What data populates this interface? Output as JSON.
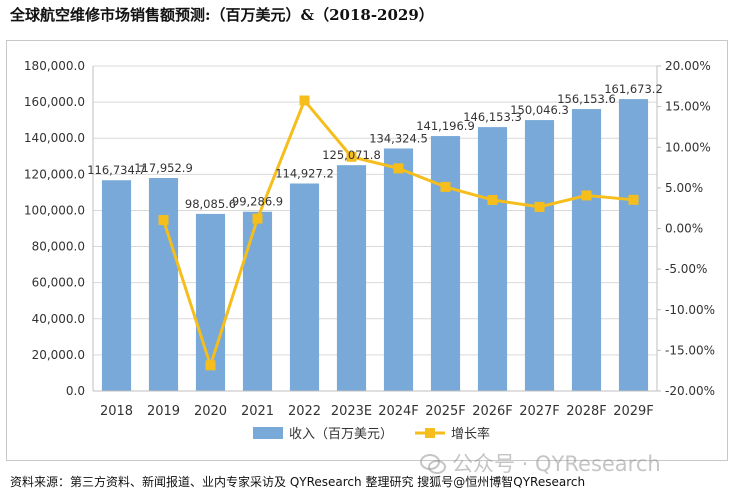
{
  "title": "全球航空维修市场销售额预测:（百万美元）&（2018-2029）",
  "source": "资料来源：第三方资料、新闻报道、业内专家采访及 QYResearch 整理研究 搜狐号@恒州博智QYResearch",
  "watermark": "公众号 · QYResearch",
  "colors": {
    "bar": "#78a9d8",
    "line": "#f5be1c",
    "grid": "#d9d9d9",
    "axis": "#bfbfbf",
    "text": "#333333"
  },
  "chart_data": {
    "type": "bar",
    "categories": [
      "2018",
      "2019",
      "2020",
      "2021",
      "2022",
      "2023E",
      "2024F",
      "2025F",
      "2026F",
      "2027F",
      "2028F",
      "2029F"
    ],
    "series": [
      {
        "name": "收入（百万美元）",
        "type": "bar",
        "axis": "left",
        "values": [
          116734.7,
          117952.9,
          98085.6,
          99286.9,
          114927.2,
          125071.8,
          134324.5,
          141196.9,
          146153.3,
          150046.3,
          156153.6,
          161673.2
        ],
        "labels": [
          "116,734.7",
          "117,952.9",
          "98,085.6",
          "99,286.9",
          "114,927.2",
          "125,071.8",
          "134,324.5",
          "141,196.9",
          "146,153.3",
          "150,046.3",
          "156,153.6",
          "161,673.2"
        ]
      },
      {
        "name": "增长率",
        "type": "line",
        "axis": "right",
        "values": [
          null,
          1.04,
          -16.84,
          1.22,
          15.75,
          8.83,
          7.4,
          5.12,
          3.51,
          2.66,
          4.07,
          3.53
        ]
      }
    ],
    "left_axis": {
      "min": 0,
      "max": 180000,
      "step": 20000,
      "ticks": [
        "0.0",
        "20,000.0",
        "40,000.0",
        "60,000.0",
        "80,000.0",
        "100,000.0",
        "120,000.0",
        "140,000.0",
        "160,000.0",
        "180,000.0"
      ]
    },
    "right_axis": {
      "min": -20,
      "max": 20,
      "step": 5,
      "ticks": [
        "-20.00%",
        "-15.00%",
        "-10.00%",
        "-5.00%",
        "0.00%",
        "5.00%",
        "10.00%",
        "15.00%",
        "20.00%"
      ]
    },
    "grid": true,
    "legend": {
      "position": "bottom",
      "entries": [
        "收入（百万美元）",
        "增长率"
      ]
    }
  }
}
